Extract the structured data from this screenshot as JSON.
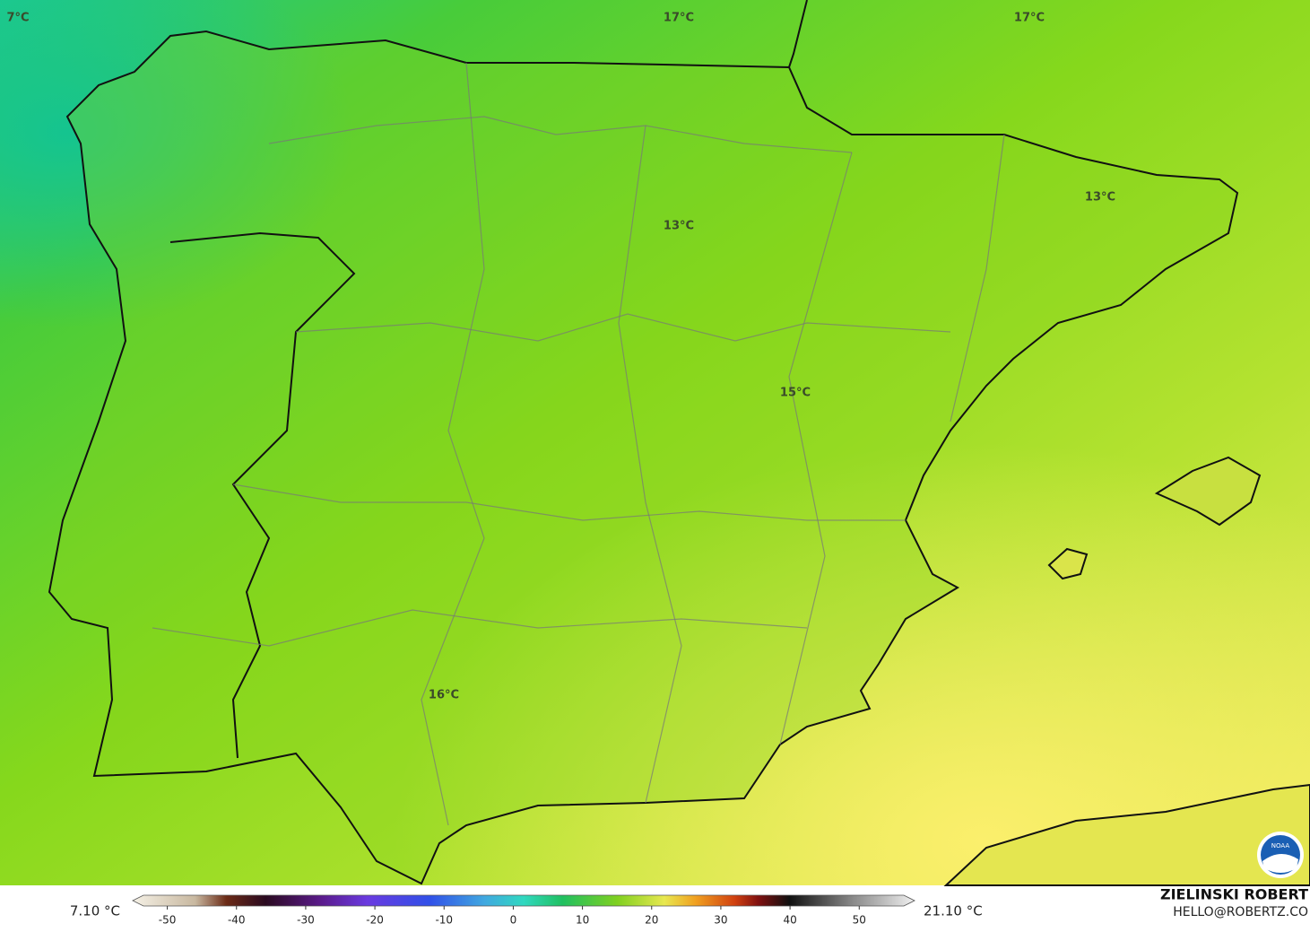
{
  "map": {
    "contour_labels": [
      "7°C",
      "17°C",
      "17°C",
      "13°C",
      "13°C",
      "15°C",
      "16°C"
    ]
  },
  "colorbar": {
    "min_label": "7.10 °C",
    "max_label": "21.10 °C",
    "range": [
      -55,
      58
    ],
    "ticks": [
      -50,
      -40,
      -30,
      -20,
      -10,
      0,
      10,
      20,
      30,
      40,
      50
    ]
  },
  "credit": {
    "name": "ZIELINSKI ROBERT",
    "email": "HELLO@ROBERTZ.CO"
  },
  "logo": "NOAA"
}
